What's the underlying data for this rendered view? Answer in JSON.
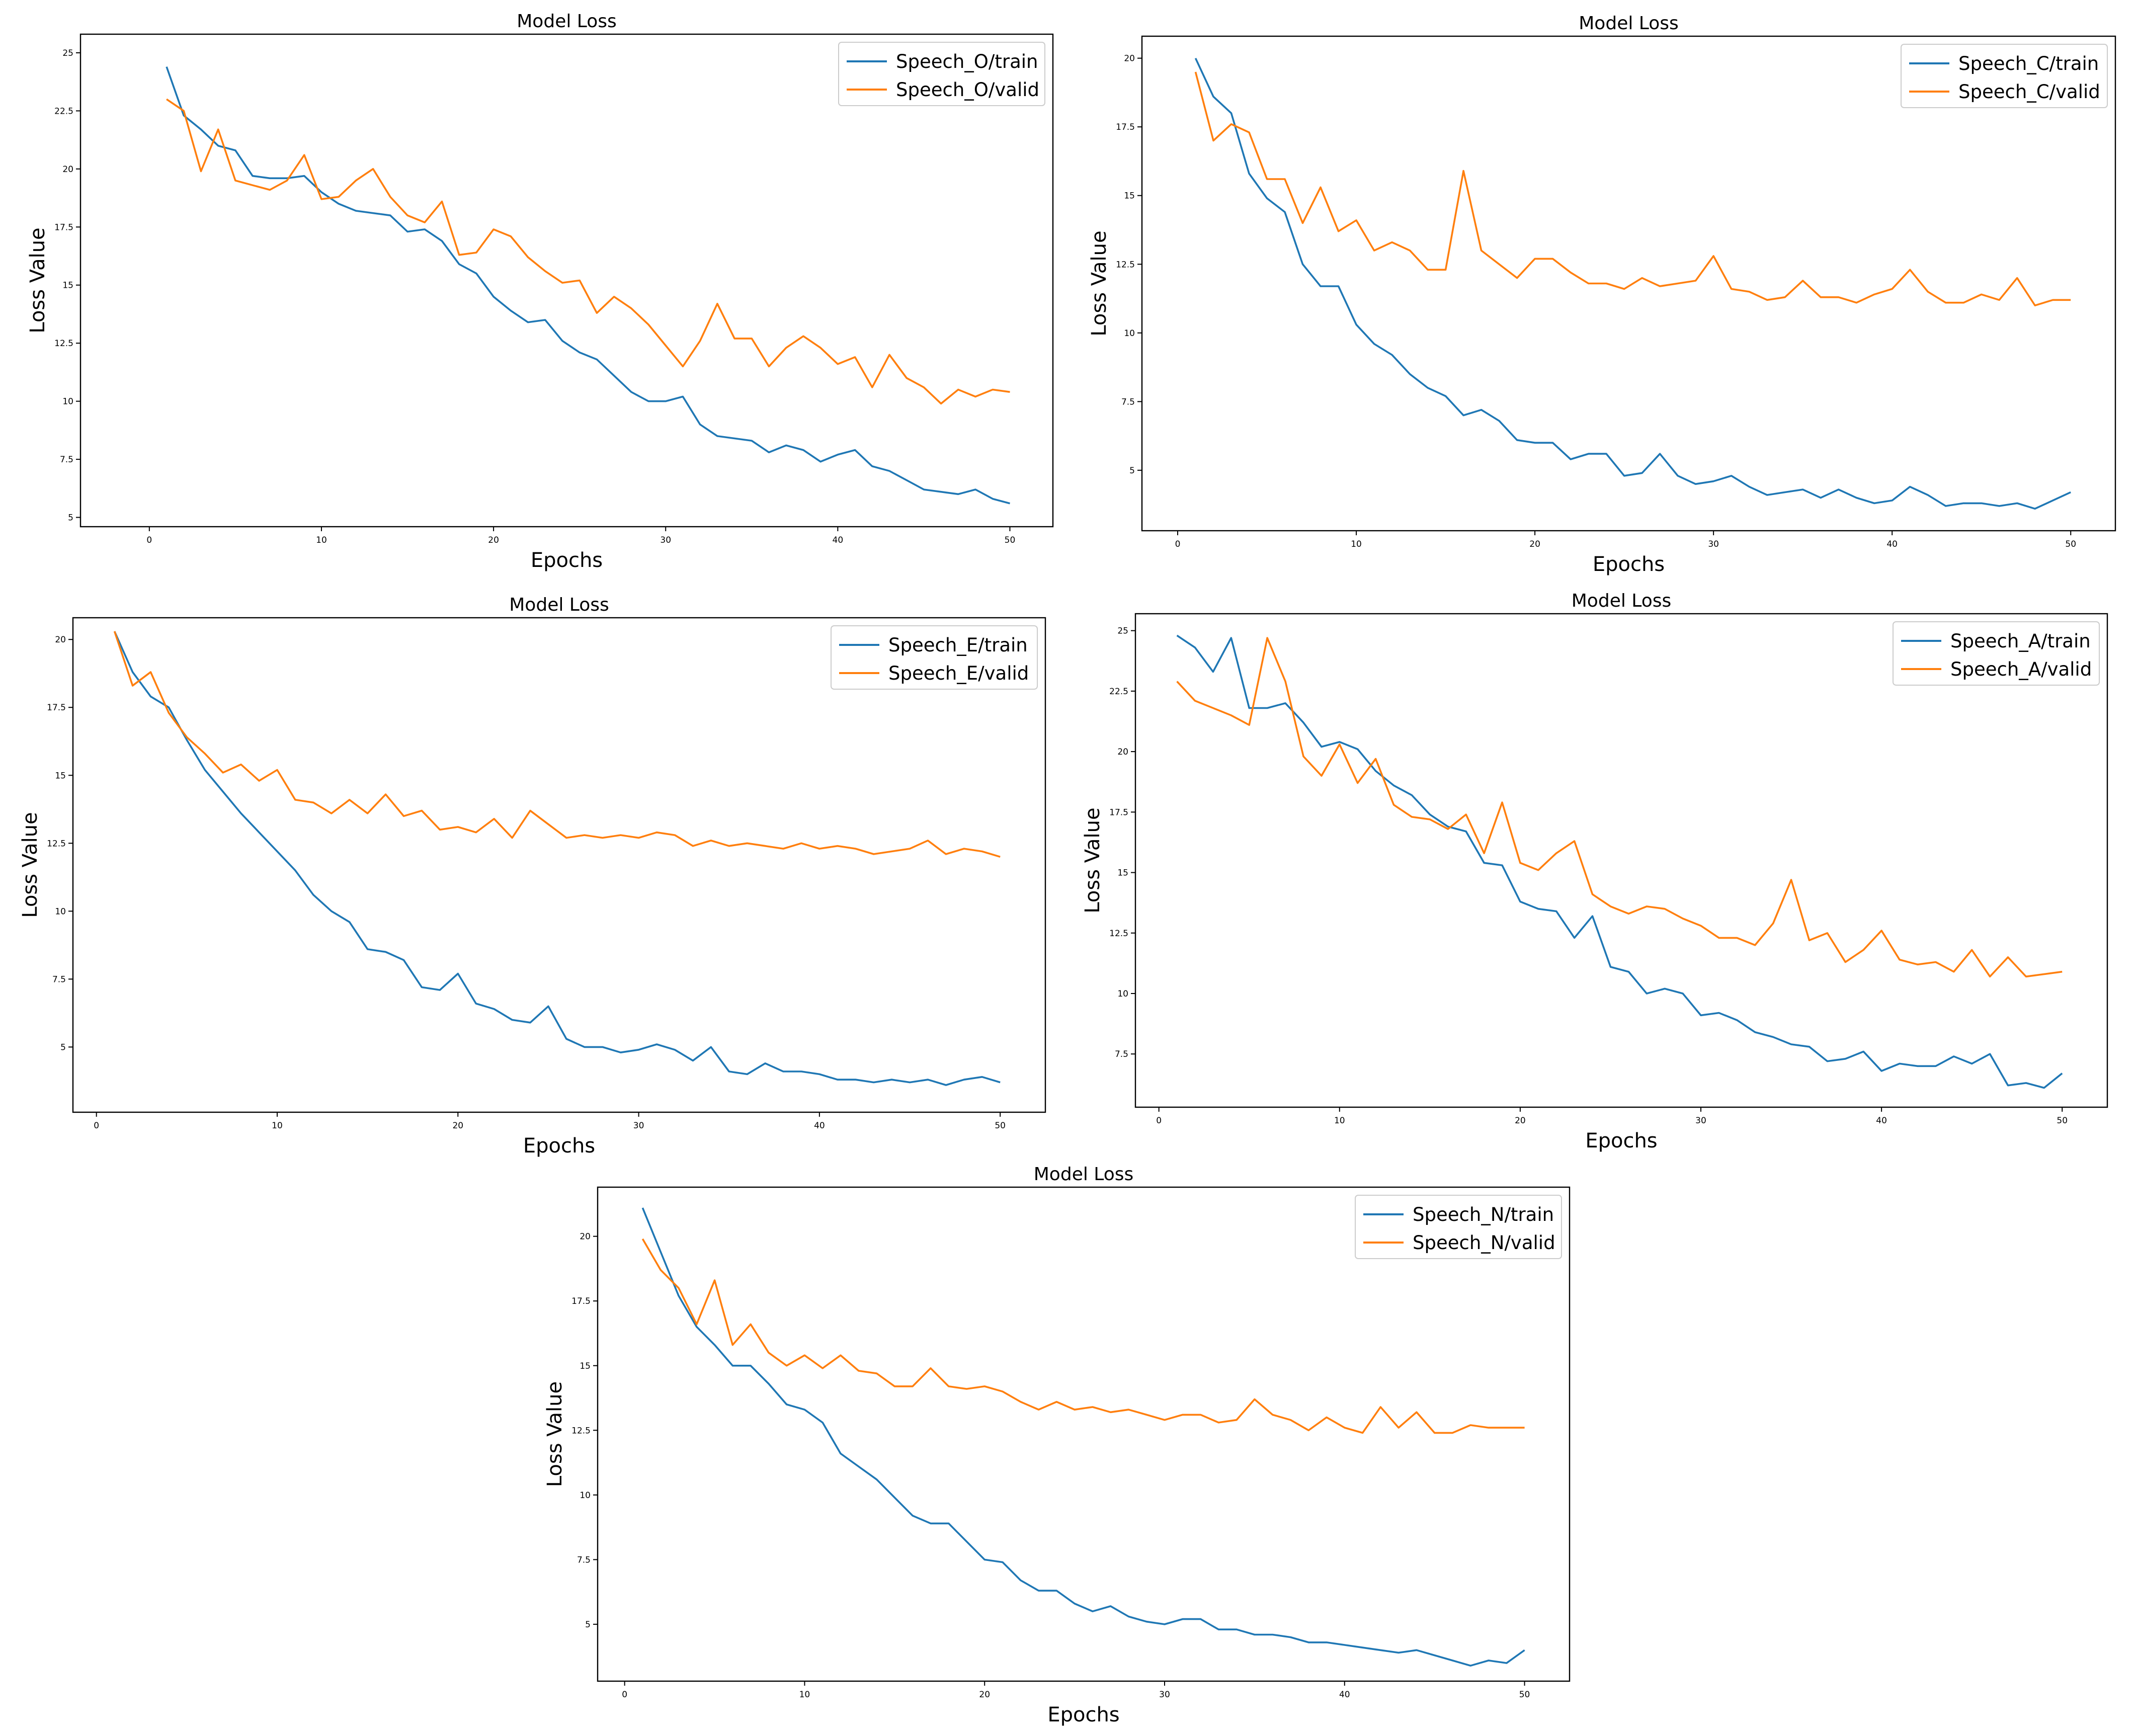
{
  "chart_data": [
    {
      "type": "line",
      "title": "Model Loss",
      "xlabel": "Epochs",
      "ylabel": "Loss Value",
      "xlim": [
        -4,
        52.5
      ],
      "ylim": [
        4.6,
        25.8
      ],
      "xticks": [
        0,
        10,
        20,
        30,
        40,
        50
      ],
      "yticks": [
        5.0,
        7.5,
        10.0,
        12.5,
        15.0,
        17.5,
        20.0,
        22.5,
        25.0
      ],
      "x": [
        1,
        2,
        3,
        4,
        5,
        6,
        7,
        8,
        9,
        10,
        11,
        12,
        13,
        14,
        15,
        16,
        17,
        18,
        19,
        20,
        21,
        22,
        23,
        24,
        25,
        26,
        27,
        28,
        29,
        30,
        31,
        32,
        33,
        34,
        35,
        36,
        37,
        38,
        39,
        40,
        41,
        42,
        43,
        44,
        45,
        46,
        47,
        48,
        49,
        50
      ],
      "legend_position": "top-right",
      "series": [
        {
          "name": "Speech_O/train",
          "color": "#1f77b4",
          "values": [
            24.4,
            22.3,
            21.7,
            21.0,
            20.8,
            19.7,
            19.6,
            19.6,
            19.7,
            19.0,
            18.5,
            18.2,
            18.1,
            18.0,
            17.3,
            17.4,
            16.9,
            15.9,
            15.5,
            14.5,
            13.9,
            13.4,
            13.5,
            12.6,
            12.1,
            11.8,
            11.1,
            10.4,
            10.0,
            10.0,
            10.2,
            9.0,
            8.5,
            8.4,
            8.3,
            7.8,
            8.1,
            7.9,
            7.4,
            7.7,
            7.9,
            7.2,
            7.0,
            6.6,
            6.2,
            6.1,
            6.0,
            6.2,
            5.8,
            5.6
          ]
        },
        {
          "name": "Speech_O/valid",
          "color": "#ff7f0e",
          "values": [
            23.0,
            22.5,
            19.9,
            21.7,
            19.5,
            19.3,
            19.1,
            19.5,
            20.6,
            18.7,
            18.8,
            19.5,
            20.0,
            18.8,
            18.0,
            17.7,
            18.6,
            16.3,
            16.4,
            17.4,
            17.1,
            16.2,
            15.6,
            15.1,
            15.2,
            13.8,
            14.5,
            14.0,
            13.3,
            12.4,
            11.5,
            12.6,
            14.2,
            12.7,
            12.7,
            11.5,
            12.3,
            12.8,
            12.3,
            11.6,
            11.9,
            10.6,
            12.0,
            11.0,
            10.6,
            9.9,
            10.5,
            10.2,
            10.5,
            10.4
          ]
        }
      ]
    },
    {
      "type": "line",
      "title": "Model Loss",
      "xlabel": "Epochs",
      "ylabel": "Loss Value",
      "xlim": [
        -2,
        52.5
      ],
      "ylim": [
        2.8,
        20.8
      ],
      "xticks": [
        0,
        10,
        20,
        30,
        40,
        50
      ],
      "yticks": [
        5.0,
        7.5,
        10.0,
        12.5,
        15.0,
        17.5,
        20.0
      ],
      "x": [
        1,
        2,
        3,
        4,
        5,
        6,
        7,
        8,
        9,
        10,
        11,
        12,
        13,
        14,
        15,
        16,
        17,
        18,
        19,
        20,
        21,
        22,
        23,
        24,
        25,
        26,
        27,
        28,
        29,
        30,
        31,
        32,
        33,
        34,
        35,
        36,
        37,
        38,
        39,
        40,
        41,
        42,
        43,
        44,
        45,
        46,
        47,
        48,
        49,
        50
      ],
      "legend_position": "top-right",
      "series": [
        {
          "name": "Speech_C/train",
          "color": "#1f77b4",
          "values": [
            20.0,
            18.6,
            18.0,
            15.8,
            14.9,
            14.4,
            12.5,
            11.7,
            11.7,
            10.3,
            9.6,
            9.2,
            8.5,
            8.0,
            7.7,
            7.0,
            7.2,
            6.8,
            6.1,
            6.0,
            6.0,
            5.4,
            5.6,
            5.6,
            4.8,
            4.9,
            5.6,
            4.8,
            4.5,
            4.6,
            4.8,
            4.4,
            4.1,
            4.2,
            4.3,
            4.0,
            4.3,
            4.0,
            3.8,
            3.9,
            4.4,
            4.1,
            3.7,
            3.8,
            3.8,
            3.7,
            3.8,
            3.6,
            3.9,
            4.2
          ]
        },
        {
          "name": "Speech_C/valid",
          "color": "#ff7f0e",
          "values": [
            19.5,
            17.0,
            17.6,
            17.3,
            15.6,
            15.6,
            14.0,
            15.3,
            13.7,
            14.1,
            13.0,
            13.3,
            13.0,
            12.3,
            12.3,
            15.9,
            13.0,
            12.5,
            12.0,
            12.7,
            12.7,
            12.2,
            11.8,
            11.8,
            11.6,
            12.0,
            11.7,
            11.8,
            11.9,
            12.8,
            11.6,
            11.5,
            11.2,
            11.3,
            11.9,
            11.3,
            11.3,
            11.1,
            11.4,
            11.6,
            12.3,
            11.5,
            11.1,
            11.1,
            11.4,
            11.2,
            12.0,
            11.0,
            11.2,
            11.2
          ]
        }
      ]
    },
    {
      "type": "line",
      "title": "Model Loss",
      "xlabel": "Epochs",
      "ylabel": "Loss Value",
      "xlim": [
        -1.3,
        52.5
      ],
      "ylim": [
        2.6,
        20.8
      ],
      "xticks": [
        0,
        10,
        20,
        30,
        40,
        50
      ],
      "yticks": [
        5.0,
        7.5,
        10.0,
        12.5,
        15.0,
        17.5,
        20.0
      ],
      "x": [
        1,
        2,
        3,
        4,
        5,
        6,
        7,
        8,
        9,
        10,
        11,
        12,
        13,
        14,
        15,
        16,
        17,
        18,
        19,
        20,
        21,
        22,
        23,
        24,
        25,
        26,
        27,
        28,
        29,
        30,
        31,
        32,
        33,
        34,
        35,
        36,
        37,
        38,
        39,
        40,
        41,
        42,
        43,
        44,
        45,
        46,
        47,
        48,
        49,
        50
      ],
      "legend_position": "top-right",
      "series": [
        {
          "name": "Speech_E/train",
          "color": "#1f77b4",
          "values": [
            20.3,
            18.8,
            17.9,
            17.5,
            16.3,
            15.2,
            14.4,
            13.6,
            12.9,
            12.2,
            11.5,
            10.6,
            10.0,
            9.6,
            8.6,
            8.5,
            8.2,
            7.2,
            7.1,
            7.7,
            6.6,
            6.4,
            6.0,
            5.9,
            6.5,
            5.3,
            5.0,
            5.0,
            4.8,
            4.9,
            5.1,
            4.9,
            4.5,
            5.0,
            4.1,
            4.0,
            4.4,
            4.1,
            4.1,
            4.0,
            3.8,
            3.8,
            3.7,
            3.8,
            3.7,
            3.8,
            3.6,
            3.8,
            3.9,
            3.7
          ]
        },
        {
          "name": "Speech_E/valid",
          "color": "#ff7f0e",
          "values": [
            20.3,
            18.3,
            18.8,
            17.3,
            16.4,
            15.8,
            15.1,
            15.4,
            14.8,
            15.2,
            14.1,
            14.0,
            13.6,
            14.1,
            13.6,
            14.3,
            13.5,
            13.7,
            13.0,
            13.1,
            12.9,
            13.4,
            12.7,
            13.7,
            13.2,
            12.7,
            12.8,
            12.7,
            12.8,
            12.7,
            12.9,
            12.8,
            12.4,
            12.6,
            12.4,
            12.5,
            12.4,
            12.3,
            12.5,
            12.3,
            12.4,
            12.3,
            12.1,
            12.2,
            12.3,
            12.6,
            12.1,
            12.3,
            12.2,
            12.0
          ]
        }
      ]
    },
    {
      "type": "line",
      "title": "Model Loss",
      "xlabel": "Epochs",
      "ylabel": "Loss Value",
      "xlim": [
        -1.3,
        52.5
      ],
      "ylim": [
        5.3,
        25.7
      ],
      "xticks": [
        0,
        10,
        20,
        30,
        40,
        50
      ],
      "yticks": [
        7.5,
        10.0,
        12.5,
        15.0,
        17.5,
        20.0,
        22.5,
        25.0
      ],
      "x": [
        1,
        2,
        3,
        4,
        5,
        6,
        7,
        8,
        9,
        10,
        11,
        12,
        13,
        14,
        15,
        16,
        17,
        18,
        19,
        20,
        21,
        22,
        23,
        24,
        25,
        26,
        27,
        28,
        29,
        30,
        31,
        32,
        33,
        34,
        35,
        36,
        37,
        38,
        39,
        40,
        41,
        42,
        43,
        44,
        45,
        46,
        47,
        48,
        49,
        50
      ],
      "legend_position": "top-right",
      "series": [
        {
          "name": "Speech_A/train",
          "color": "#1f77b4",
          "values": [
            24.8,
            24.3,
            23.3,
            24.7,
            21.8,
            21.8,
            22.0,
            21.2,
            20.2,
            20.4,
            20.1,
            19.2,
            18.6,
            18.2,
            17.4,
            16.9,
            16.7,
            15.4,
            15.3,
            13.8,
            13.5,
            13.4,
            12.3,
            13.2,
            11.1,
            10.9,
            10.0,
            10.2,
            10.0,
            9.1,
            9.2,
            8.9,
            8.4,
            8.2,
            7.9,
            7.8,
            7.2,
            7.3,
            7.6,
            6.8,
            7.1,
            7.0,
            7.0,
            7.4,
            7.1,
            7.5,
            6.2,
            6.3,
            6.1,
            6.7
          ]
        },
        {
          "name": "Speech_A/valid",
          "color": "#ff7f0e",
          "values": [
            22.9,
            22.1,
            21.8,
            21.5,
            21.1,
            24.7,
            22.9,
            19.8,
            19.0,
            20.3,
            18.7,
            19.7,
            17.8,
            17.3,
            17.2,
            16.8,
            17.4,
            15.8,
            17.9,
            15.4,
            15.1,
            15.8,
            16.3,
            14.1,
            13.6,
            13.3,
            13.6,
            13.5,
            13.1,
            12.8,
            12.3,
            12.3,
            12.0,
            12.9,
            14.7,
            12.2,
            12.5,
            11.3,
            11.8,
            12.6,
            11.4,
            11.2,
            11.3,
            10.9,
            11.8,
            10.7,
            11.5,
            10.7,
            10.8,
            10.9
          ]
        }
      ]
    },
    {
      "type": "line",
      "title": "Model Loss",
      "xlabel": "Epochs",
      "ylabel": "Loss Value",
      "xlim": [
        -1.5,
        52.5
      ],
      "ylim": [
        2.8,
        21.9
      ],
      "xticks": [
        0,
        10,
        20,
        30,
        40,
        50
      ],
      "yticks": [
        5.0,
        7.5,
        10.0,
        12.5,
        15.0,
        17.5,
        20.0
      ],
      "x": [
        1,
        2,
        3,
        4,
        5,
        6,
        7,
        8,
        9,
        10,
        11,
        12,
        13,
        14,
        15,
        16,
        17,
        18,
        19,
        20,
        21,
        22,
        23,
        24,
        25,
        26,
        27,
        28,
        29,
        30,
        31,
        32,
        33,
        34,
        35,
        36,
        37,
        38,
        39,
        40,
        41,
        42,
        43,
        44,
        45,
        46,
        47,
        48,
        49,
        50
      ],
      "legend_position": "top-right",
      "series": [
        {
          "name": "Speech_N/train",
          "color": "#1f77b4",
          "values": [
            21.1,
            19.4,
            17.7,
            16.5,
            15.8,
            15.0,
            15.0,
            14.3,
            13.5,
            13.3,
            12.8,
            11.6,
            11.1,
            10.6,
            9.9,
            9.2,
            8.9,
            8.9,
            8.2,
            7.5,
            7.4,
            6.7,
            6.3,
            6.3,
            5.8,
            5.5,
            5.7,
            5.3,
            5.1,
            5.0,
            5.2,
            5.2,
            4.8,
            4.8,
            4.6,
            4.6,
            4.5,
            4.3,
            4.3,
            4.2,
            4.1,
            4.0,
            3.9,
            4.0,
            3.8,
            3.6,
            3.4,
            3.6,
            3.5,
            4.0
          ]
        },
        {
          "name": "Speech_N/valid",
          "color": "#ff7f0e",
          "values": [
            19.9,
            18.7,
            18.0,
            16.6,
            18.3,
            15.8,
            16.6,
            15.5,
            15.0,
            15.4,
            14.9,
            15.4,
            14.8,
            14.7,
            14.2,
            14.2,
            14.9,
            14.2,
            14.1,
            14.2,
            14.0,
            13.6,
            13.3,
            13.6,
            13.3,
            13.4,
            13.2,
            13.3,
            13.1,
            12.9,
            13.1,
            13.1,
            12.8,
            12.9,
            13.7,
            13.1,
            12.9,
            12.5,
            13.0,
            12.6,
            12.4,
            13.4,
            12.6,
            13.2,
            12.4,
            12.4,
            12.7,
            12.6,
            12.6,
            12.6
          ]
        }
      ]
    }
  ]
}
